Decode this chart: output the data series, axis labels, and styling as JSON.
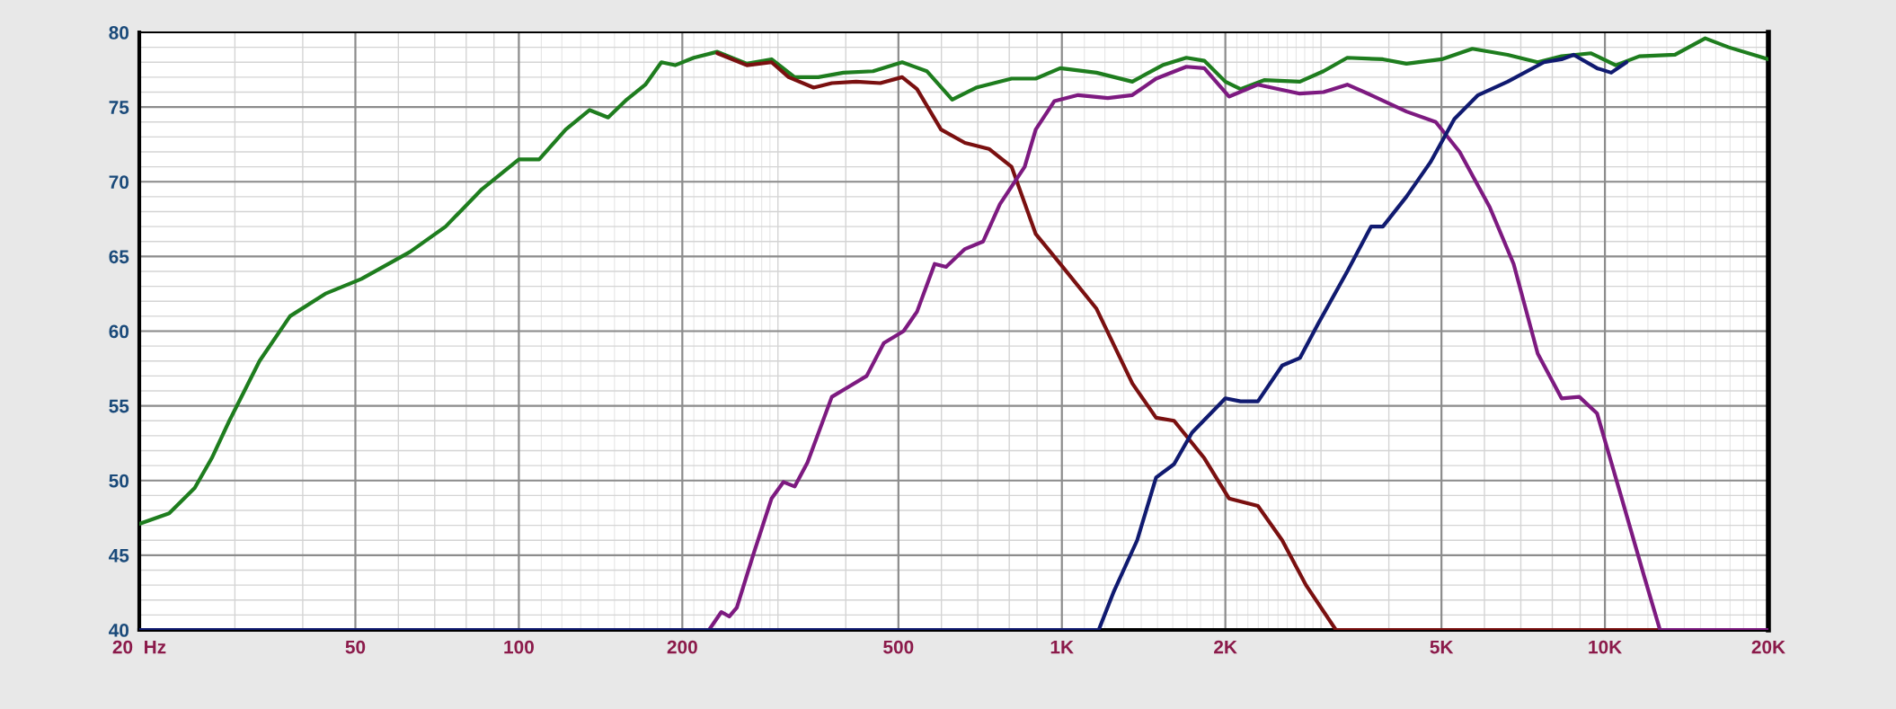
{
  "chart_data": {
    "type": "line",
    "log": "x",
    "grid": true,
    "xlim": [
      20,
      20000
    ],
    "xticks": [
      {
        "value": 20,
        "label": "20  Hz"
      },
      50,
      100,
      200,
      500,
      {
        "value": 1000,
        "label": "1K"
      },
      {
        "value": 2000,
        "label": "2K"
      },
      {
        "value": 5000,
        "label": "5K"
      },
      {
        "value": 10000,
        "label": "10K"
      },
      {
        "value": 20000,
        "label": "20K"
      }
    ],
    "ylim": [
      40,
      80
    ],
    "yticks": [
      40,
      45,
      50,
      55,
      60,
      65,
      70,
      75,
      80
    ],
    "series": [
      {
        "color": "#1e7d1e",
        "x": [
          20,
          22.7,
          25.3,
          27.2,
          29.3,
          33.3,
          37.9,
          44,
          51.3,
          63,
          73.3,
          85.5,
          100,
          109,
          122,
          135,
          146,
          158,
          171,
          183,
          194,
          210,
          232,
          263,
          292,
          322,
          356,
          396,
          449,
          508,
          564,
          628,
          695,
          808,
          895,
          993,
          1158,
          1348,
          1532,
          1695,
          1829,
          2000,
          2133,
          2357,
          2743,
          3032,
          3354,
          3900,
          4310,
          5005,
          5700,
          6620,
          7520,
          8320,
          9430,
          10470,
          11570,
          13460,
          15300,
          16900,
          20000
        ],
        "values": [
          47.1,
          47.8,
          49.5,
          51.5,
          54,
          58,
          61,
          62.5,
          63.5,
          65.3,
          67,
          69.5,
          71.5,
          71.5,
          73.5,
          74.8,
          74.3,
          75.5,
          76.5,
          78,
          77.8,
          78.3,
          78.7,
          77.9,
          78.2,
          77.0,
          77.0,
          77.3,
          77.4,
          78,
          77.4,
          75.5,
          76.3,
          76.9,
          76.9,
          77.6,
          77.3,
          76.7,
          77.8,
          78.3,
          78.1,
          76.7,
          76.2,
          76.8,
          76.7,
          77.4,
          78.3,
          78.2,
          77.9,
          78.2,
          78.9,
          78.5,
          78.0,
          78.4,
          78.6,
          77.8,
          78.4,
          78.5,
          79.6,
          79.0,
          78.2
        ]
      },
      {
        "color": "#7a1010",
        "x": [
          232,
          263,
          292,
          314,
          349,
          377,
          418,
          463,
          508,
          541,
          599,
          663,
          734,
          808,
          895,
          993,
          1158,
          1348,
          1491,
          1609,
          1829,
          2031,
          2296,
          2545,
          2815,
          3196,
          20000
        ],
        "values": [
          78.6,
          77.8,
          78.0,
          77.0,
          76.3,
          76.6,
          76.7,
          76.6,
          77.0,
          76.2,
          73.5,
          72.6,
          72.2,
          71.0,
          66.5,
          64.5,
          61.5,
          56.5,
          54.2,
          54.0,
          51.5,
          48.8,
          48.3,
          46,
          43,
          40,
          40
        ]
      },
      {
        "color": "#7d1a80",
        "x": [
          20,
          224,
          236,
          244,
          252,
          270,
          292,
          307,
          322,
          340,
          377,
          406,
          437,
          470,
          511,
          541,
          583,
          612,
          663,
          716,
          769,
          854,
          895,
          969,
          1071,
          1215,
          1348,
          1491,
          1695,
          1829,
          2031,
          2296,
          2743,
          3032,
          3354,
          3710,
          4310,
          4880,
          5400,
          6135,
          6790,
          7520,
          8320,
          8970,
          9670,
          10700,
          11830,
          12630,
          20000
        ],
        "values": [
          40,
          40,
          41.2,
          40.9,
          41.5,
          45,
          48.8,
          49.9,
          49.6,
          51.2,
          55.6,
          56.3,
          57,
          59.2,
          60,
          61.3,
          64.5,
          64.3,
          65.5,
          66,
          68.5,
          71,
          73.5,
          75.4,
          75.8,
          75.6,
          75.8,
          76.9,
          77.7,
          77.6,
          75.7,
          76.5,
          75.9,
          76.0,
          76.5,
          75.8,
          74.7,
          74.0,
          72.0,
          68.3,
          64.5,
          58.5,
          55.5,
          55.6,
          54.5,
          49,
          43.5,
          40,
          40
        ]
      },
      {
        "color": "#101a70",
        "x": [
          20,
          1169,
          1244,
          1376,
          1491,
          1609,
          1736,
          2000,
          2133,
          2296,
          2545,
          2743,
          2964,
          3354,
          3710,
          3900,
          4310,
          4770,
          5280,
          5840,
          6620,
          7720,
          8320,
          8760,
          9670,
          10270,
          10960
        ],
        "values": [
          40,
          40,
          42.5,
          46,
          50.2,
          51.1,
          53.2,
          55.5,
          55.3,
          55.3,
          57.7,
          58.2,
          60.5,
          64,
          67,
          67,
          69,
          71.3,
          74.2,
          75.8,
          76.7,
          78.0,
          78.2,
          78.5,
          77.6,
          77.3,
          78.0
        ]
      }
    ]
  }
}
